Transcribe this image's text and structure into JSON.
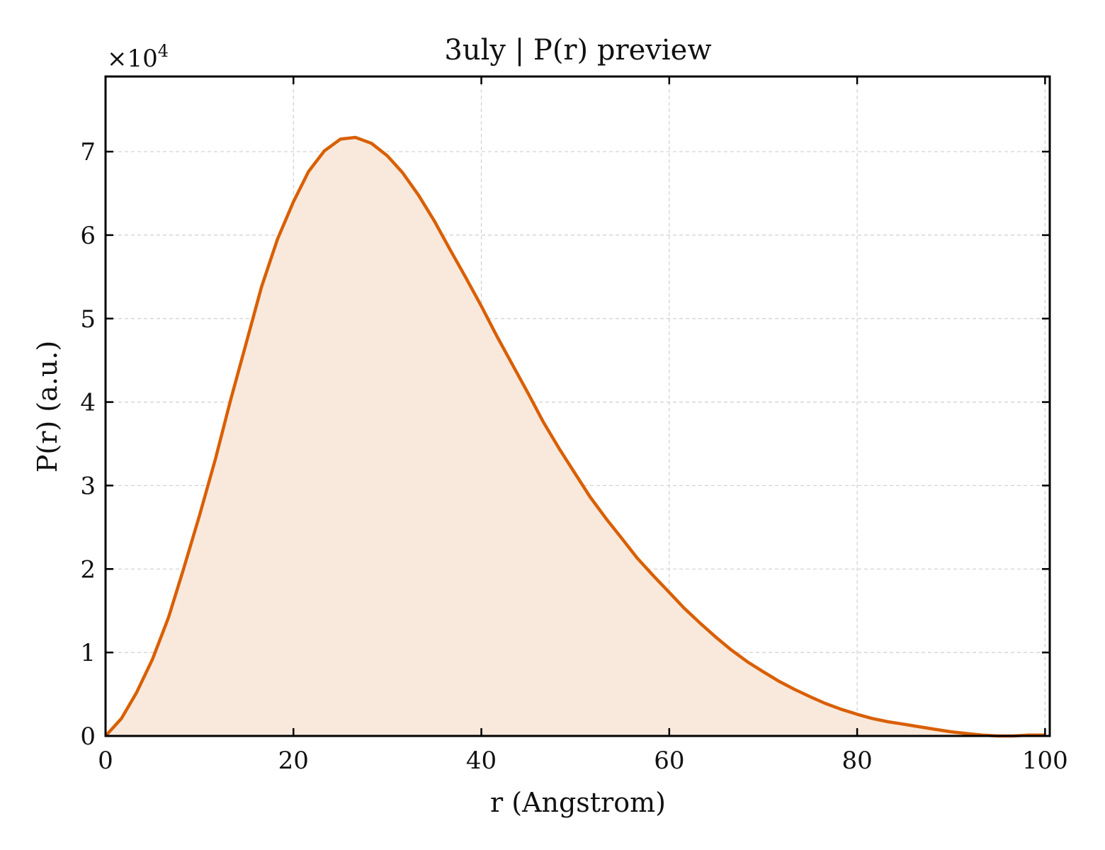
{
  "chart_data": {
    "type": "area",
    "title": "3uly | P(r) preview",
    "xlabel": "r (Angstrom)",
    "ylabel": "P(r) (a.u.)",
    "y_multiplier_base": "×10",
    "y_multiplier_exp": "4",
    "xlim": [
      0,
      100.5
    ],
    "ylim": [
      0,
      7.9
    ],
    "x_ticks": [
      0,
      20,
      40,
      60,
      80,
      100
    ],
    "y_ticks": [
      0,
      1,
      2,
      3,
      4,
      5,
      6,
      7
    ],
    "grid": true,
    "line_color": "#d95f02",
    "fill_color": "#f9e9dd",
    "series": [
      {
        "x": [
          0,
          1.7,
          3.3,
          5.0,
          6.7,
          8.3,
          10.0,
          11.7,
          13.3,
          15.0,
          16.6,
          18.3,
          20.0,
          21.6,
          23.3,
          25.0,
          26.6,
          28.3,
          30.0,
          31.6,
          33.3,
          35.0,
          36.6,
          38.3,
          40.0,
          41.6,
          43.3,
          45.0,
          46.6,
          48.3,
          50.0,
          51.6,
          53.3,
          55.0,
          56.6,
          58.3,
          60.0,
          61.6,
          63.3,
          65.0,
          66.6,
          68.3,
          70.0,
          71.6,
          73.3,
          75.0,
          76.6,
          78.3,
          80.0,
          81.6,
          83.3,
          85.0,
          86.6,
          88.3,
          90.0,
          91.6,
          93.3,
          95.0,
          96.6,
          98.3,
          100.0
        ],
        "y": [
          0.0,
          0.21,
          0.52,
          0.92,
          1.42,
          2.0,
          2.64,
          3.32,
          4.02,
          4.72,
          5.38,
          5.95,
          6.4,
          6.76,
          7.01,
          7.15,
          7.17,
          7.1,
          6.95,
          6.75,
          6.48,
          6.17,
          5.84,
          5.5,
          5.15,
          4.8,
          4.45,
          4.1,
          3.76,
          3.44,
          3.14,
          2.86,
          2.6,
          2.36,
          2.13,
          1.92,
          1.72,
          1.53,
          1.35,
          1.18,
          1.03,
          0.89,
          0.77,
          0.66,
          0.56,
          0.47,
          0.39,
          0.32,
          0.26,
          0.21,
          0.17,
          0.14,
          0.11,
          0.08,
          0.05,
          0.03,
          0.01,
          0.0,
          0.0,
          0.01,
          0.01
        ]
      }
    ]
  }
}
